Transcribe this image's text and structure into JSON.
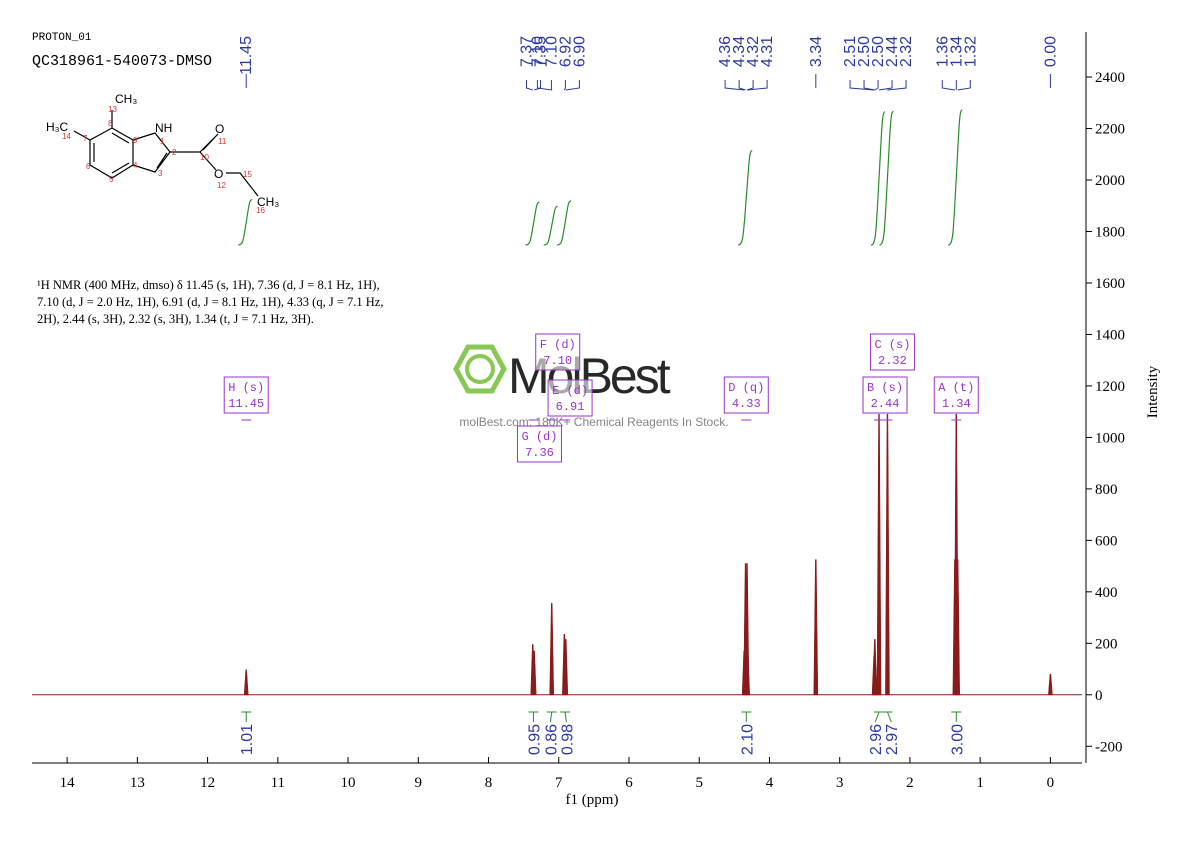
{
  "header": {
    "experiment": "PROTON_01",
    "sample": "QC318961-540073-DMSO"
  },
  "structure": {
    "atoms": [
      "CH₃",
      "H₃C",
      "NH",
      "O",
      "O",
      "CH₃"
    ],
    "numbers": [
      "13",
      "14",
      "7",
      "8",
      "9",
      "1",
      "2",
      "10",
      "11",
      "6",
      "4",
      "3",
      "12",
      "15",
      "5",
      "16"
    ]
  },
  "description": [
    "¹H NMR (400 MHz, dmso) δ 11.45 (s, 1H), 7.36 (d, J = 8.1 Hz, 1H),",
    "7.10 (d, J = 2.0 Hz, 1H), 6.91 (d, J = 8.1 Hz, 1H), 4.33 (q, J = 7.1 Hz,",
    "2H), 2.44 (s, 3H), 2.32 (s, 3H), 1.34 (t, J = 7.1 Hz, 3H)."
  ],
  "watermark": {
    "logo": "MolBest",
    "tagline": "molBest.com, 180K+ Chemical Reagents In Stock."
  },
  "chart_data": {
    "type": "spectrum",
    "xlabel": "f1 (ppm)",
    "ylabel": "Intensity",
    "xlim": [
      14.5,
      -0.45
    ],
    "ylim": [
      -265,
      2575
    ],
    "xticks": [
      14,
      13,
      12,
      11,
      10,
      9,
      8,
      7,
      6,
      5,
      4,
      3,
      2,
      1,
      0
    ],
    "yticks": [
      -200,
      0,
      200,
      400,
      600,
      800,
      1000,
      1200,
      1400,
      1600,
      1800,
      2000,
      2200,
      2400
    ],
    "series": [
      {
        "color": "#8b1a1a",
        "x": [
          11.45,
          7.37,
          7.35,
          7.1,
          6.92,
          6.9,
          4.36,
          4.34,
          4.32,
          4.31,
          3.34,
          2.51,
          2.5,
          2.49,
          2.44,
          2.32,
          1.36,
          1.34,
          1.32,
          0
        ],
        "values": [
          97,
          195,
          170,
          355,
          235,
          215,
          170,
          510,
          510,
          170,
          525,
          150,
          215,
          110,
          1090,
          1090,
          525,
          1090,
          525,
          80
        ]
      }
    ],
    "peak_labels": [
      11.45,
      7.37,
      7.35,
      {
        "value": 7.1,
        "label": "7.10"
      },
      {
        "value": 7.1,
        "label": "7.10"
      },
      6.92,
      {
        "value": 6.9,
        "label": "6.90"
      },
      4.36,
      4.34,
      4.32,
      4.31,
      3.34,
      2.51,
      {
        "value": 2.5,
        "label": "2.50"
      },
      {
        "value": 2.5,
        "label": "2.50"
      },
      2.44,
      2.32,
      1.36,
      1.34,
      1.32,
      {
        "value": 0,
        "label": "0.00"
      }
    ],
    "integrals": {
      "x": [
        11.45,
        7.36,
        7.1,
        6.91,
        4.33,
        2.44,
        2.32,
        1.34
      ],
      "values": [
        1.01,
        0.95,
        0.86,
        0.98,
        {
          "value": 2.1,
          "label": "2.10"
        },
        2.96,
        2.97,
        {
          "value": 3,
          "label": "3.00"
        }
      ],
      "color": "#2a8c2a"
    },
    "multiplets": [
      {
        "label": "H (s)",
        "shift": 11.45
      },
      {
        "label": "F (d)",
        "shift": {
          "value": 7.1,
          "label": "7.10"
        }
      },
      {
        "label": "E (d)",
        "shift": 6.91
      },
      {
        "label": "G (d)",
        "shift": 7.36
      },
      {
        "label": "D (q)",
        "shift": 4.33
      },
      {
        "label": "C (s)",
        "shift": 2.32
      },
      {
        "label": "B (s)",
        "shift": 2.44
      },
      {
        "label": "A (t)",
        "shift": 1.34
      }
    ],
    "label_color": "#2b3a9e",
    "multiplet_color": "#9933cc"
  }
}
